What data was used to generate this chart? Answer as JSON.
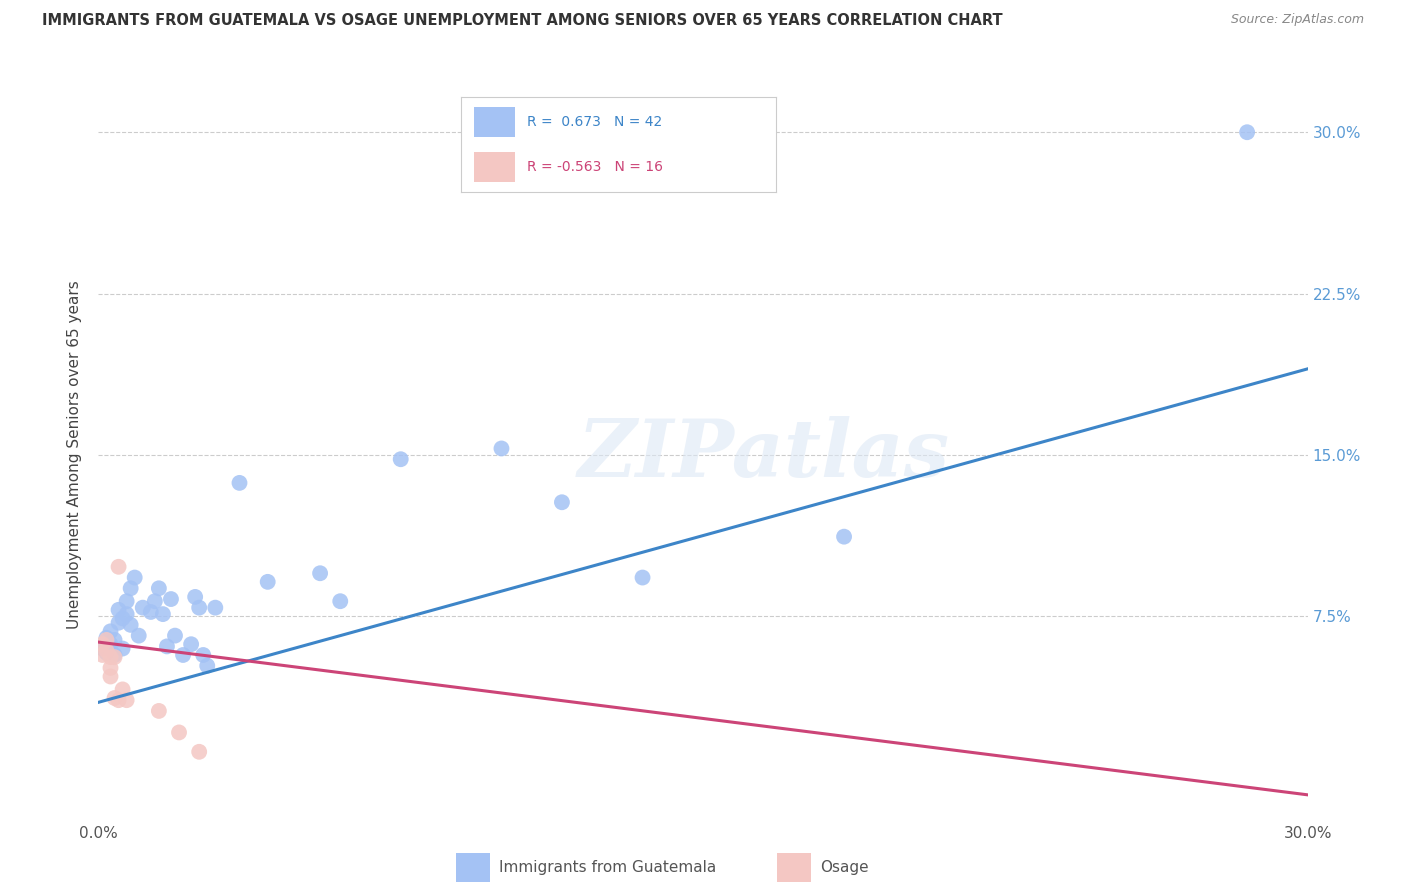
{
  "title": "IMMIGRANTS FROM GUATEMALA VS OSAGE UNEMPLOYMENT AMONG SENIORS OVER 65 YEARS CORRELATION CHART",
  "source": "Source: ZipAtlas.com",
  "ylabel": "Unemployment Among Seniors over 65 years",
  "xlim": [
    0.0,
    0.3
  ],
  "ylim": [
    -0.02,
    0.32
  ],
  "yticks": [
    0.075,
    0.15,
    0.225,
    0.3
  ],
  "ytick_labels": [
    "7.5%",
    "15.0%",
    "22.5%",
    "30.0%"
  ],
  "xticks": [
    0.0,
    0.05,
    0.1,
    0.15,
    0.2,
    0.25,
    0.3
  ],
  "xtick_labels": [
    "0.0%",
    "",
    "",
    "",
    "",
    "",
    "30.0%"
  ],
  "legend_r1": "R =  0.673   N = 42",
  "legend_r2": "R = -0.563   N = 16",
  "blue_color": "#a4c2f4",
  "pink_color": "#f4c7c3",
  "blue_line_color": "#3d85c8",
  "pink_line_color": "#cc4477",
  "watermark": "ZIPatlas",
  "blue_line_x0": 0.0,
  "blue_line_y0": 0.035,
  "blue_line_x1": 0.3,
  "blue_line_y1": 0.19,
  "pink_line_x0": 0.0,
  "pink_line_y0": 0.063,
  "pink_line_x1": 0.3,
  "pink_line_y1": -0.008,
  "guatemala_points": [
    [
      0.001,
      0.06
    ],
    [
      0.002,
      0.058
    ],
    [
      0.002,
      0.065
    ],
    [
      0.003,
      0.062
    ],
    [
      0.003,
      0.068
    ],
    [
      0.004,
      0.057
    ],
    [
      0.004,
      0.064
    ],
    [
      0.005,
      0.072
    ],
    [
      0.005,
      0.078
    ],
    [
      0.006,
      0.074
    ],
    [
      0.006,
      0.06
    ],
    [
      0.007,
      0.076
    ],
    [
      0.007,
      0.082
    ],
    [
      0.008,
      0.088
    ],
    [
      0.008,
      0.071
    ],
    [
      0.009,
      0.093
    ],
    [
      0.01,
      0.066
    ],
    [
      0.011,
      0.079
    ],
    [
      0.013,
      0.077
    ],
    [
      0.014,
      0.082
    ],
    [
      0.015,
      0.088
    ],
    [
      0.016,
      0.076
    ],
    [
      0.017,
      0.061
    ],
    [
      0.018,
      0.083
    ],
    [
      0.019,
      0.066
    ],
    [
      0.021,
      0.057
    ],
    [
      0.023,
      0.062
    ],
    [
      0.024,
      0.084
    ],
    [
      0.025,
      0.079
    ],
    [
      0.026,
      0.057
    ],
    [
      0.027,
      0.052
    ],
    [
      0.029,
      0.079
    ],
    [
      0.035,
      0.137
    ],
    [
      0.042,
      0.091
    ],
    [
      0.055,
      0.095
    ],
    [
      0.06,
      0.082
    ],
    [
      0.075,
      0.148
    ],
    [
      0.1,
      0.153
    ],
    [
      0.115,
      0.128
    ],
    [
      0.135,
      0.093
    ],
    [
      0.185,
      0.112
    ],
    [
      0.285,
      0.3
    ]
  ],
  "osage_points": [
    [
      0.001,
      0.062
    ],
    [
      0.001,
      0.057
    ],
    [
      0.002,
      0.064
    ],
    [
      0.002,
      0.059
    ],
    [
      0.003,
      0.056
    ],
    [
      0.003,
      0.051
    ],
    [
      0.003,
      0.047
    ],
    [
      0.004,
      0.056
    ],
    [
      0.004,
      0.037
    ],
    [
      0.005,
      0.036
    ],
    [
      0.005,
      0.098
    ],
    [
      0.006,
      0.041
    ],
    [
      0.007,
      0.036
    ],
    [
      0.015,
      0.031
    ],
    [
      0.02,
      0.021
    ],
    [
      0.025,
      0.012
    ]
  ]
}
